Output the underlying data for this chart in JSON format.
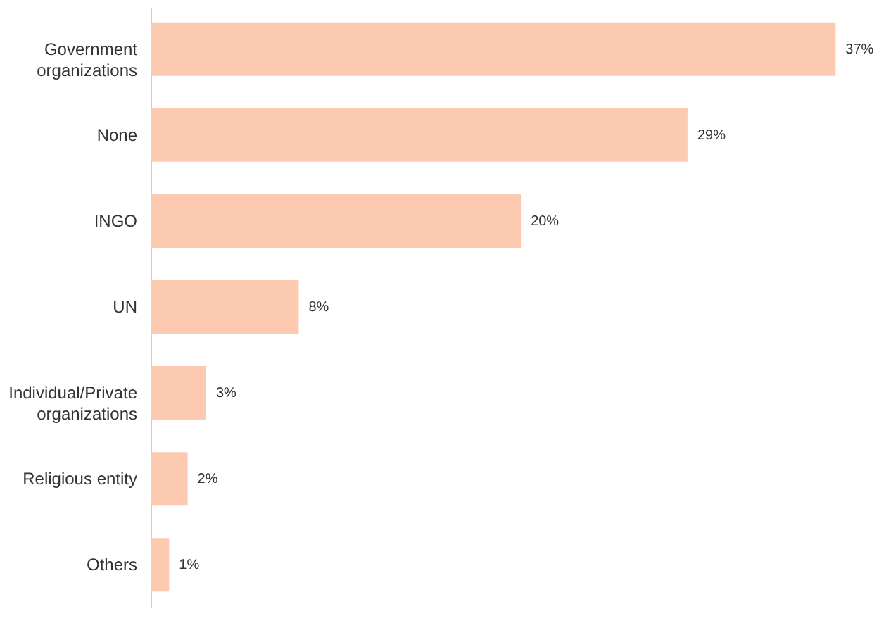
{
  "chart_data": {
    "type": "bar",
    "orientation": "horizontal",
    "data_labels": true,
    "categories": [
      "Government\norganizations",
      "None",
      "INGO",
      "UN",
      "Individual/Private\norganizations",
      "Religious entity",
      "Others"
    ],
    "values": [
      37,
      29,
      20,
      8,
      3,
      2,
      1
    ],
    "value_labels": [
      "37%",
      "29%",
      "20%",
      "8%",
      "3%",
      "2%",
      "1%"
    ],
    "color": "#fccab1"
  }
}
